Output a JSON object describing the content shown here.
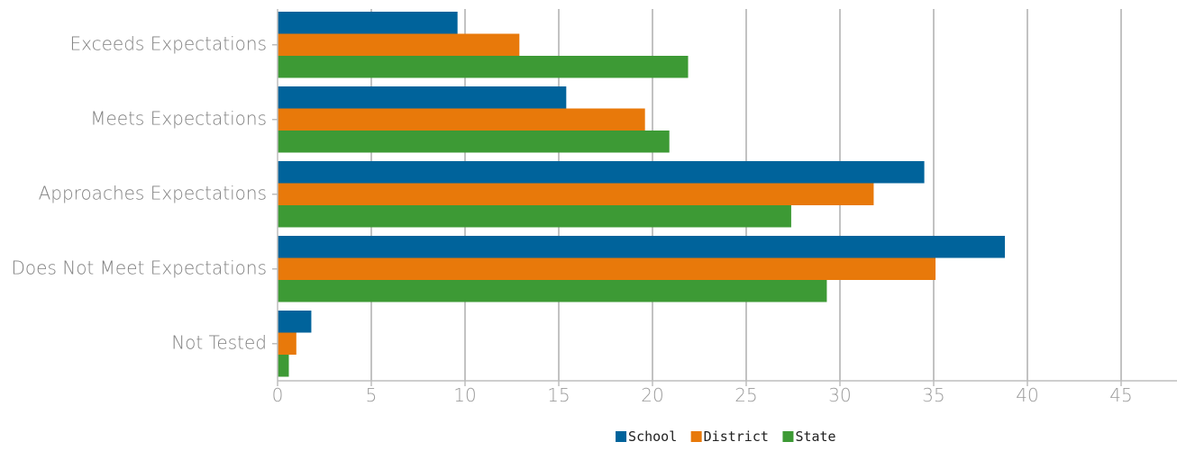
{
  "chart_data": {
    "type": "bar",
    "orientation": "horizontal",
    "title": "",
    "xlabel": "",
    "ylabel": "",
    "categories": [
      "Exceeds Expectations",
      "Meets Expectations",
      "Approaches Expectations",
      "Does Not Meet Expectations",
      "Not Tested"
    ],
    "series": [
      {
        "name": "School",
        "color": "#00639b",
        "values": [
          9.6,
          15.4,
          34.5,
          38.8,
          1.8
        ]
      },
      {
        "name": "District",
        "color": "#e8790a",
        "values": [
          12.9,
          19.6,
          31.8,
          35.1,
          1.0
        ]
      },
      {
        "name": "State",
        "color": "#3d9a35",
        "values": [
          21.9,
          20.9,
          27.4,
          29.3,
          0.6
        ]
      }
    ],
    "xlim": [
      0,
      48
    ],
    "xticks": [
      0,
      5,
      10,
      15,
      20,
      25,
      30,
      35,
      40,
      45
    ],
    "grid": "vertical",
    "legend_position": "bottom-center"
  }
}
